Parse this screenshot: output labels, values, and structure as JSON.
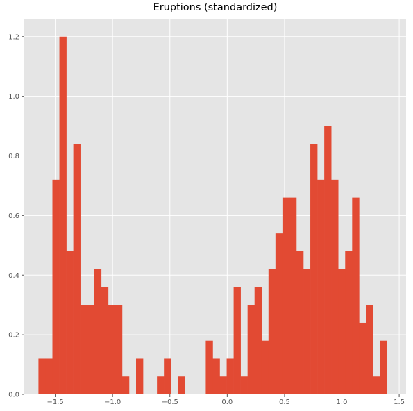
{
  "chart_data": {
    "type": "bar",
    "title": "Eruptions (standardized)",
    "xlabel": "",
    "ylabel": "",
    "xlim": [
      -1.77,
      1.56
    ],
    "ylim": [
      0,
      1.26
    ],
    "grid": true,
    "xticks": [
      -1.5,
      -1.0,
      -0.5,
      0.0,
      0.5,
      1.0,
      1.5
    ],
    "xtick_labels": [
      "−1.5",
      "−1.0",
      "−0.5",
      "0.0",
      "0.5",
      "1.0",
      "1.5"
    ],
    "yticks": [
      0.0,
      0.2,
      0.4,
      0.6,
      0.8,
      1.0,
      1.2
    ],
    "ytick_labels": [
      "0.0",
      "0.2",
      "0.4",
      "0.6",
      "0.8",
      "1.0",
      "1.2"
    ],
    "bar_color": "#E24A33",
    "bin_start": -1.6464,
    "bin_width": 0.0608,
    "values": [
      0.12,
      0.12,
      0.72,
      1.2,
      0.48,
      0.84,
      0.3,
      0.3,
      0.42,
      0.36,
      0.3,
      0.3,
      0.06,
      0,
      0.12,
      0,
      0,
      0.06,
      0.12,
      0,
      0.06,
      0,
      0,
      0,
      0.18,
      0.12,
      0.06,
      0.12,
      0.36,
      0.06,
      0.3,
      0.36,
      0.18,
      0.42,
      0.54,
      0.66,
      0.66,
      0.48,
      0.42,
      0.84,
      0.72,
      0.9,
      0.72,
      0.42,
      0.48,
      0.66,
      0.24,
      0.3,
      0.06,
      0.18
    ]
  },
  "colors": {
    "plot_background": "#E5E5E5",
    "grid": "#FFFFFF",
    "tick_label": "#555555"
  }
}
